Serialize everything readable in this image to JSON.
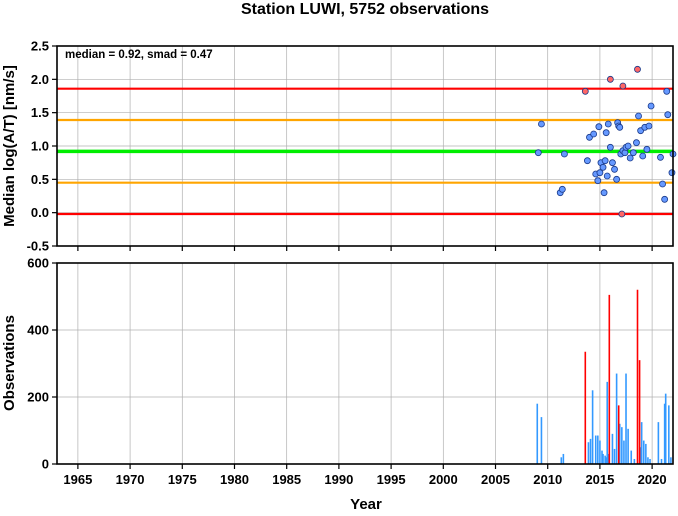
{
  "chart_data": [
    {
      "type": "scatter",
      "title": "Station LUWI, 5752 observations",
      "xlabel": "",
      "ylabel": "Median log(A/T) [nm/s]",
      "xlim": [
        1963,
        2022
      ],
      "ylim": [
        -0.5,
        2.5
      ],
      "yticks": [
        -0.5,
        0.0,
        0.5,
        1.0,
        1.5,
        2.0,
        2.5
      ],
      "ytick_labels": [
        "-0.5",
        "0.0",
        "0.5",
        "1.0",
        "1.5",
        "2.0",
        "2.5"
      ],
      "grid": true,
      "annotation": "median = 0.92, smad = 0.47",
      "reference_lines": [
        {
          "y": 1.86,
          "color": "#ff0000"
        },
        {
          "y": 1.39,
          "color": "#ffa500"
        },
        {
          "y": 0.92,
          "color": "#00ee00"
        },
        {
          "y": 0.45,
          "color": "#ffa500"
        },
        {
          "y": -0.02,
          "color": "#ff0000"
        }
      ],
      "series": [
        {
          "color": "#6699ff",
          "points": [
            [
              2009.1,
              0.9
            ],
            [
              2009.4,
              1.33
            ],
            [
              2011.2,
              0.3
            ],
            [
              2011.4,
              0.35
            ],
            [
              2011.6,
              0.88
            ],
            [
              2013.8,
              0.78
            ],
            [
              2014.0,
              1.13
            ],
            [
              2014.4,
              1.18
            ],
            [
              2014.6,
              0.58
            ],
            [
              2014.8,
              0.48
            ],
            [
              2014.9,
              1.29
            ],
            [
              2015.0,
              0.6
            ],
            [
              2015.1,
              0.75
            ],
            [
              2015.3,
              0.68
            ],
            [
              2015.4,
              0.3
            ],
            [
              2015.5,
              0.78
            ],
            [
              2015.6,
              1.2
            ],
            [
              2015.7,
              0.55
            ],
            [
              2015.8,
              1.33
            ],
            [
              2016.0,
              0.98
            ],
            [
              2016.2,
              0.75
            ],
            [
              2016.4,
              0.65
            ],
            [
              2016.6,
              0.5
            ],
            [
              2016.7,
              1.35
            ],
            [
              2016.8,
              1.3
            ],
            [
              2016.9,
              1.28
            ],
            [
              2017.0,
              0.88
            ],
            [
              2017.2,
              0.93
            ],
            [
              2017.4,
              0.9
            ],
            [
              2017.5,
              0.98
            ],
            [
              2017.7,
              1.0
            ],
            [
              2017.9,
              0.82
            ],
            [
              2018.2,
              0.9
            ],
            [
              2018.5,
              1.05
            ],
            [
              2018.7,
              1.45
            ],
            [
              2018.9,
              1.23
            ],
            [
              2019.1,
              0.85
            ],
            [
              2019.3,
              1.28
            ],
            [
              2019.5,
              0.95
            ],
            [
              2019.7,
              1.3
            ],
            [
              2019.9,
              1.6
            ],
            [
              2020.8,
              0.83
            ],
            [
              2021.0,
              0.43
            ],
            [
              2021.2,
              0.2
            ],
            [
              2021.4,
              1.82
            ],
            [
              2021.5,
              1.47
            ],
            [
              2021.9,
              0.6
            ],
            [
              2022.0,
              0.88
            ]
          ]
        },
        {
          "color": "#ff6666",
          "points": [
            [
              2013.6,
              1.82
            ],
            [
              2016.0,
              2.0
            ],
            [
              2017.2,
              1.9
            ],
            [
              2017.1,
              -0.02
            ],
            [
              2018.6,
              2.15
            ]
          ]
        }
      ]
    },
    {
      "type": "bar",
      "title": "",
      "xlabel": "Year",
      "ylabel": "Observations",
      "xlim": [
        1963,
        2022
      ],
      "ylim": [
        0,
        600
      ],
      "xticks": [
        1965,
        1970,
        1975,
        1980,
        1985,
        1990,
        1995,
        2000,
        2005,
        2010,
        2015,
        2020
      ],
      "xtick_labels": [
        "1965",
        "1970",
        "1975",
        "1980",
        "1985",
        "1990",
        "1995",
        "2000",
        "2005",
        "2010",
        "2015",
        "2020"
      ],
      "yticks": [
        0,
        200,
        400,
        600
      ],
      "ytick_labels": [
        "0",
        "200",
        "400",
        "600"
      ],
      "grid": true,
      "series": [
        {
          "color": "#3399ff",
          "points": [
            [
              2009.0,
              180
            ],
            [
              2009.4,
              140
            ],
            [
              2011.3,
              20
            ],
            [
              2011.5,
              30
            ],
            [
              2013.9,
              65
            ],
            [
              2014.1,
              75
            ],
            [
              2014.3,
              220
            ],
            [
              2014.6,
              85
            ],
            [
              2014.8,
              85
            ],
            [
              2015.0,
              70
            ],
            [
              2015.2,
              40
            ],
            [
              2015.3,
              30
            ],
            [
              2015.5,
              25
            ],
            [
              2015.6,
              20
            ],
            [
              2015.7,
              245
            ],
            [
              2015.8,
              30
            ],
            [
              2016.2,
              90
            ],
            [
              2016.4,
              45
            ],
            [
              2016.6,
              270
            ],
            [
              2016.9,
              120
            ],
            [
              2017.1,
              110
            ],
            [
              2017.3,
              70
            ],
            [
              2017.5,
              270
            ],
            [
              2017.7,
              105
            ],
            [
              2018.0,
              40
            ],
            [
              2018.3,
              15
            ],
            [
              2018.9,
              50
            ],
            [
              2019.0,
              125
            ],
            [
              2019.2,
              70
            ],
            [
              2019.4,
              60
            ],
            [
              2019.6,
              20
            ],
            [
              2019.8,
              15
            ],
            [
              2020.6,
              125
            ],
            [
              2020.9,
              15
            ],
            [
              2021.2,
              180
            ],
            [
              2021.3,
              210
            ],
            [
              2021.6,
              175
            ],
            [
              2021.8,
              20
            ]
          ]
        },
        {
          "color": "#ff0000",
          "points": [
            [
              2013.6,
              335
            ],
            [
              2015.9,
              505
            ],
            [
              2016.8,
              175
            ],
            [
              2018.6,
              520
            ],
            [
              2018.8,
              310
            ]
          ]
        }
      ]
    }
  ]
}
